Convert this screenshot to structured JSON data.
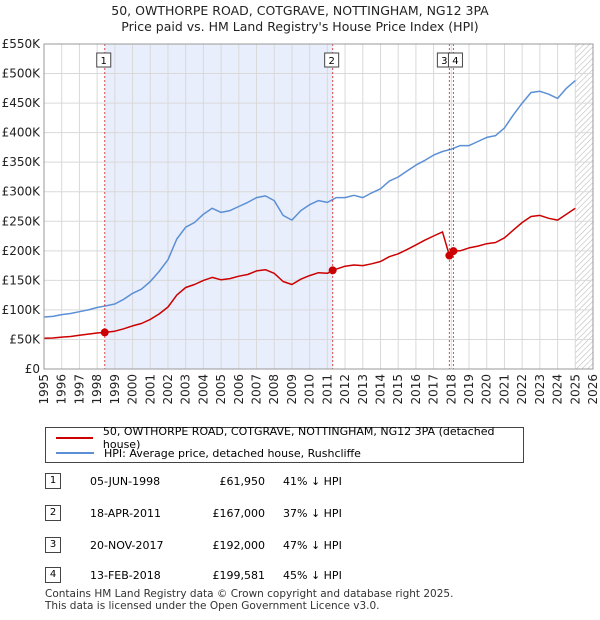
{
  "title": {
    "line1": "50, OWTHORPE ROAD, COTGRAVE, NOTTINGHAM, NG12 3PA",
    "line2": "Price paid vs. HM Land Registry's House Price Index (HPI)"
  },
  "colors": {
    "price": "#cc0000",
    "hpi": "#5b8fd6",
    "shade": "#e8eefb",
    "marker": "#cc0000"
  },
  "legend": {
    "price_label": "50, OWTHORPE ROAD, COTGRAVE, NOTTINGHAM, NG12 3PA (detached house)",
    "hpi_label": "HPI: Average price, detached house, Rushcliffe"
  },
  "sales": [
    {
      "num": "1",
      "date": "05-JUN-1998",
      "price": "£61,950",
      "hpi": "41% ↓ HPI"
    },
    {
      "num": "2",
      "date": "18-APR-2011",
      "price": "£167,000",
      "hpi": "37% ↓ HPI"
    },
    {
      "num": "3",
      "date": "20-NOV-2017",
      "price": "£192,000",
      "hpi": "47% ↓ HPI"
    },
    {
      "num": "4",
      "date": "13-FEB-2018",
      "price": "£199,581",
      "hpi": "45% ↓ HPI"
    }
  ],
  "footer": {
    "line1": "Contains HM Land Registry data © Crown copyright and database right 2025.",
    "line2": "This data is licensed under the Open Government Licence v3.0."
  },
  "chart_data": {
    "type": "line",
    "title": "Price paid vs. HM Land Registry's House Price Index (HPI)",
    "xlabel": "",
    "ylabel": "",
    "xlim": [
      1995,
      2026
    ],
    "ylim": [
      0,
      550000
    ],
    "grid": true,
    "x_ticks": [
      "1995",
      "1996",
      "1997",
      "1998",
      "1999",
      "2000",
      "2001",
      "2002",
      "2003",
      "2004",
      "2005",
      "2006",
      "2007",
      "2008",
      "2009",
      "2010",
      "2011",
      "2012",
      "2013",
      "2014",
      "2015",
      "2016",
      "2017",
      "2018",
      "2019",
      "2020",
      "2021",
      "2022",
      "2023",
      "2024",
      "2025",
      "2026"
    ],
    "y_ticks": [
      {
        "value": 0,
        "label": "£0"
      },
      {
        "value": 50000,
        "label": "£50K"
      },
      {
        "value": 100000,
        "label": "£100K"
      },
      {
        "value": 150000,
        "label": "£150K"
      },
      {
        "value": 200000,
        "label": "£200K"
      },
      {
        "value": 250000,
        "label": "£250K"
      },
      {
        "value": 300000,
        "label": "£300K"
      },
      {
        "value": 350000,
        "label": "£350K"
      },
      {
        "value": 400000,
        "label": "£400K"
      },
      {
        "value": 450000,
        "label": "£450K"
      },
      {
        "value": 500000,
        "label": "£500K"
      },
      {
        "value": 550000,
        "label": "£550K"
      }
    ],
    "shaded_regions": [
      {
        "x0": 1998.43,
        "x1": 2011.3
      }
    ],
    "hatched_after": 2025.0,
    "series": [
      {
        "name": "HPI: Average price, detached house, Rushcliffe",
        "x": [
          1995.0,
          1995.5,
          1996.0,
          1996.5,
          1997.0,
          1997.5,
          1998.0,
          1998.5,
          1999.0,
          1999.5,
          2000.0,
          2000.5,
          2001.0,
          2001.5,
          2002.0,
          2002.5,
          2003.0,
          2003.5,
          2004.0,
          2004.5,
          2005.0,
          2005.5,
          2006.0,
          2006.5,
          2007.0,
          2007.5,
          2008.0,
          2008.5,
          2009.0,
          2009.5,
          2010.0,
          2010.5,
          2011.0,
          2011.5,
          2012.0,
          2012.5,
          2013.0,
          2013.5,
          2014.0,
          2014.5,
          2015.0,
          2015.5,
          2016.0,
          2016.5,
          2017.0,
          2017.5,
          2018.0,
          2018.5,
          2019.0,
          2019.5,
          2020.0,
          2020.5,
          2021.0,
          2021.5,
          2022.0,
          2022.5,
          2023.0,
          2023.5,
          2024.0,
          2024.5,
          2025.0
        ],
        "values": [
          88000,
          89000,
          92000,
          94000,
          97000,
          100000,
          104000,
          107000,
          110000,
          118000,
          128000,
          135000,
          148000,
          165000,
          185000,
          220000,
          240000,
          248000,
          262000,
          272000,
          265000,
          268000,
          275000,
          282000,
          290000,
          293000,
          285000,
          260000,
          252000,
          268000,
          278000,
          285000,
          282000,
          290000,
          290000,
          294000,
          290000,
          298000,
          305000,
          318000,
          325000,
          335000,
          345000,
          353000,
          362000,
          368000,
          372000,
          378000,
          378000,
          385000,
          392000,
          395000,
          408000,
          430000,
          450000,
          468000,
          470000,
          465000,
          458000,
          475000,
          488000
        ]
      },
      {
        "name": "50, OWTHORPE ROAD, COTGRAVE, NOTTINGHAM, NG12 3PA (detached house)",
        "x": [
          1995.0,
          1995.5,
          1996.0,
          1996.5,
          1997.0,
          1997.5,
          1998.0,
          1998.43,
          1999.0,
          1999.5,
          2000.0,
          2000.5,
          2001.0,
          2001.5,
          2002.0,
          2002.5,
          2003.0,
          2003.5,
          2004.0,
          2004.5,
          2005.0,
          2005.5,
          2006.0,
          2006.5,
          2007.0,
          2007.5,
          2008.0,
          2008.5,
          2009.0,
          2009.5,
          2010.0,
          2010.5,
          2011.0,
          2011.3,
          2012.0,
          2012.5,
          2013.0,
          2013.5,
          2014.0,
          2014.5,
          2015.0,
          2015.5,
          2016.0,
          2016.5,
          2017.0,
          2017.5,
          2017.89,
          2018.12,
          2018.5,
          2019.0,
          2019.5,
          2020.0,
          2020.5,
          2021.0,
          2021.5,
          2022.0,
          2022.5,
          2023.0,
          2023.5,
          2024.0,
          2024.5,
          2025.0
        ],
        "values": [
          52000,
          52500,
          54000,
          55000,
          57000,
          59000,
          61000,
          61950,
          64000,
          68000,
          73000,
          77000,
          84000,
          93000,
          105000,
          125000,
          138000,
          143000,
          150000,
          155000,
          151000,
          153000,
          157000,
          160000,
          166000,
          168000,
          162000,
          148000,
          143000,
          152000,
          158000,
          163000,
          162000,
          167000,
          174000,
          176000,
          175000,
          178000,
          182000,
          190000,
          195000,
          202000,
          210000,
          218000,
          225000,
          232000,
          192000,
          199581,
          200000,
          205000,
          208000,
          212000,
          214000,
          222000,
          235000,
          248000,
          258000,
          260000,
          255000,
          252000,
          262000,
          272000
        ]
      }
    ],
    "sale_markers": [
      {
        "label": "1",
        "x": 1998.43,
        "value": 61950
      },
      {
        "label": "2",
        "x": 2011.3,
        "value": 167000
      },
      {
        "label": "3",
        "x": 2017.89,
        "value": 192000
      },
      {
        "label": "4",
        "x": 2018.12,
        "value": 199581
      }
    ]
  }
}
